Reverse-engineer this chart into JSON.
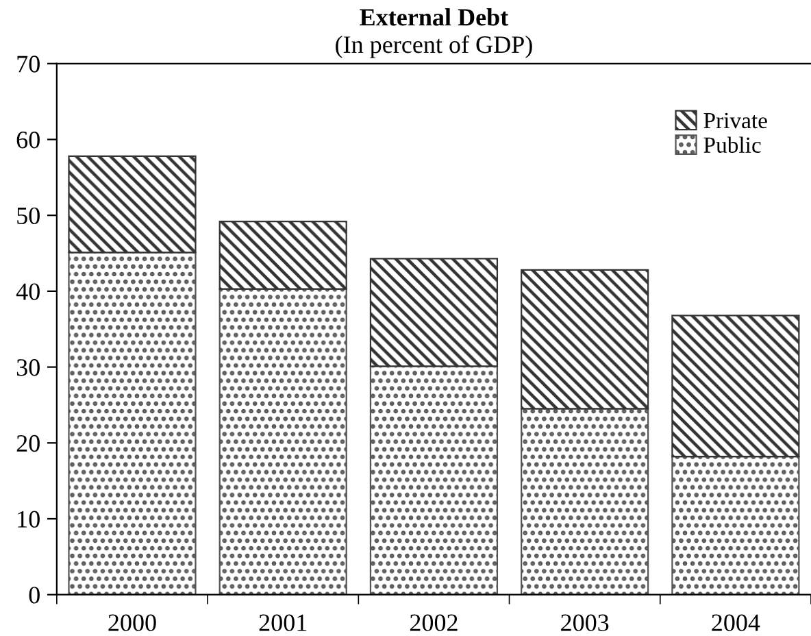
{
  "chart_data": {
    "type": "bar",
    "title": "External Debt",
    "subtitle": "(In percent of GDP)",
    "categories": [
      "2000",
      "2001",
      "2002",
      "2003",
      "2004"
    ],
    "stacked": true,
    "series": [
      {
        "name": "Public",
        "color": "#555555",
        "values": [
          45.1,
          40.3,
          30.1,
          24.5,
          18.2
        ]
      },
      {
        "name": "Private",
        "color": "#333333",
        "values": [
          12.7,
          8.9,
          14.2,
          18.3,
          18.6
        ]
      }
    ],
    "ylim": [
      0,
      70
    ],
    "yticks": [
      0,
      10,
      20,
      30,
      40,
      50,
      60,
      70
    ],
    "legend": "top right",
    "grid": false
  }
}
